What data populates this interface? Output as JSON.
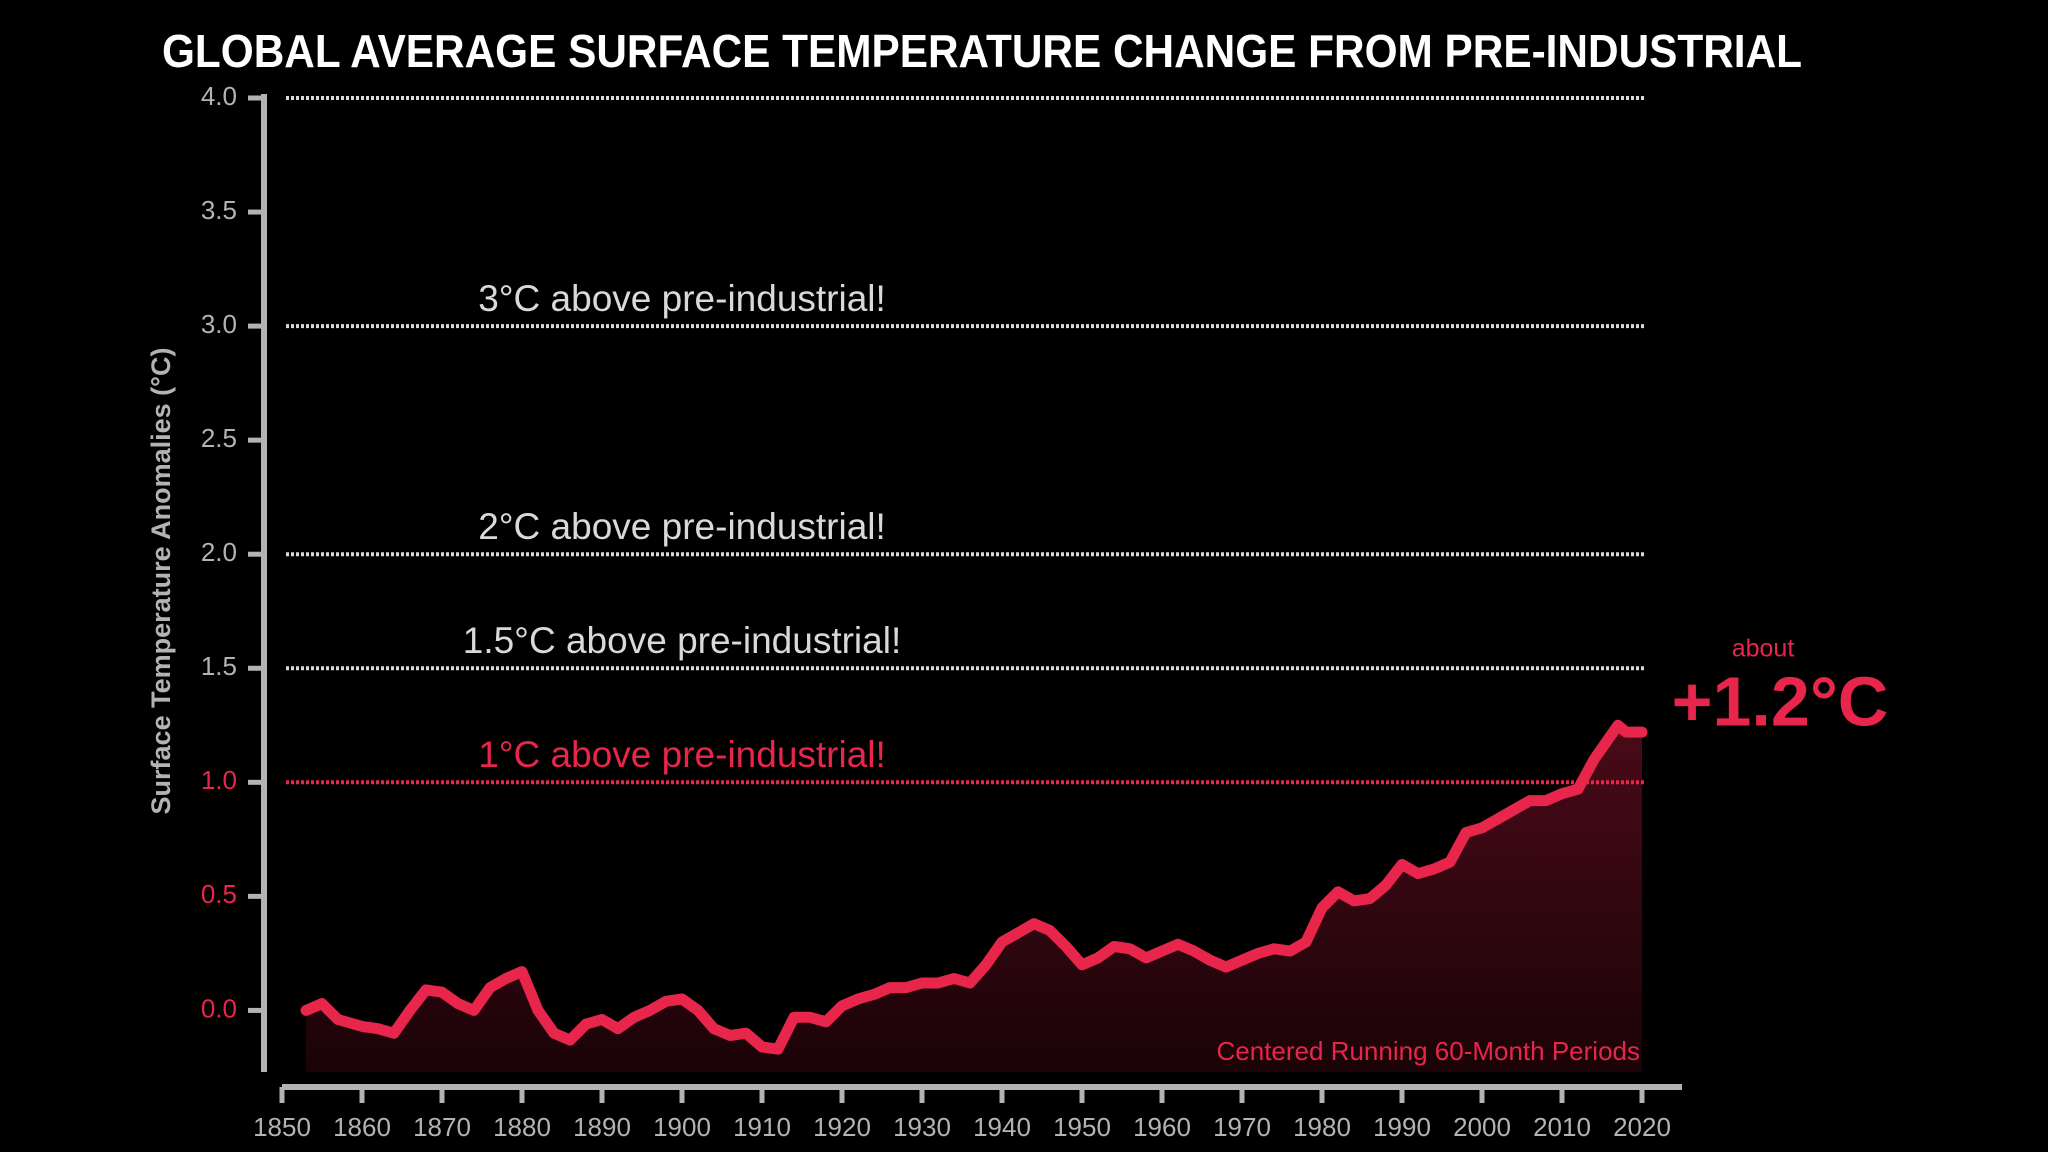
{
  "chart_data": {
    "type": "area-line",
    "title": "GLOBAL AVERAGE SURFACE TEMPERATURE CHANGE FROM PRE-INDUSTRIAL",
    "y_label": "Surface Temperature Anomalies (°C)",
    "x": [
      1853,
      1855,
      1857,
      1860,
      1862,
      1864,
      1866,
      1868,
      1870,
      1872,
      1874,
      1876,
      1878,
      1880,
      1882,
      1884,
      1886,
      1888,
      1890,
      1892,
      1894,
      1896,
      1898,
      1900,
      1902,
      1904,
      1906,
      1908,
      1910,
      1912,
      1914,
      1916,
      1918,
      1920,
      1922,
      1924,
      1926,
      1928,
      1930,
      1932,
      1934,
      1936,
      1938,
      1940,
      1942,
      1944,
      1946,
      1948,
      1950,
      1952,
      1954,
      1956,
      1958,
      1960,
      1962,
      1964,
      1966,
      1968,
      1970,
      1972,
      1974,
      1976,
      1978,
      1980,
      1982,
      1984,
      1986,
      1988,
      1990,
      1992,
      1994,
      1996,
      1998,
      2000,
      2002,
      2004,
      2006,
      2008,
      2010,
      2012,
      2014,
      2016,
      2017,
      2018,
      2020
    ],
    "series": [
      {
        "name": "Centered Running 60-Month Periods",
        "color": "#e8254a",
        "values": [
          0.0,
          0.03,
          -0.04,
          -0.07,
          -0.08,
          -0.1,
          0.0,
          0.09,
          0.08,
          0.03,
          0.0,
          0.1,
          0.14,
          0.17,
          0.0,
          -0.1,
          -0.13,
          -0.06,
          -0.04,
          -0.08,
          -0.03,
          0.0,
          0.04,
          0.05,
          0.0,
          -0.08,
          -0.11,
          -0.1,
          -0.16,
          -0.17,
          -0.03,
          -0.03,
          -0.05,
          0.02,
          0.05,
          0.07,
          0.1,
          0.1,
          0.12,
          0.12,
          0.14,
          0.12,
          0.2,
          0.3,
          0.34,
          0.38,
          0.35,
          0.28,
          0.2,
          0.23,
          0.28,
          0.27,
          0.23,
          0.26,
          0.29,
          0.26,
          0.22,
          0.19,
          0.22,
          0.25,
          0.27,
          0.26,
          0.3,
          0.45,
          0.52,
          0.48,
          0.49,
          0.55,
          0.64,
          0.6,
          0.62,
          0.65,
          0.78,
          0.8,
          0.84,
          0.88,
          0.92,
          0.92,
          0.95,
          0.97,
          1.1,
          1.2,
          1.25,
          1.22,
          1.22
        ]
      }
    ],
    "xlim": [
      1850,
      2025
    ],
    "ylim": [
      -0.27,
      4.0
    ],
    "xticks": [
      1850,
      1860,
      1870,
      1880,
      1890,
      1900,
      1910,
      1920,
      1930,
      1940,
      1950,
      1960,
      1970,
      1980,
      1990,
      2000,
      2010,
      2020
    ],
    "yticks": [
      {
        "value": 0,
        "label": "0.0"
      },
      {
        "value": 0.5,
        "label": "0.5"
      },
      {
        "value": 1,
        "label": "1.0"
      },
      {
        "value": 1.5,
        "label": "1.5"
      },
      {
        "value": 2,
        "label": "2.0"
      },
      {
        "value": 2.5,
        "label": "2.5"
      },
      {
        "value": 3,
        "label": "3.0"
      },
      {
        "value": 3.5,
        "label": "3.5"
      },
      {
        "value": 4,
        "label": "4.0"
      }
    ],
    "ytick_colors": [
      "#e8254a",
      "#e8254a",
      "#e8254a",
      "#b3b3b3",
      "#b3b3b3",
      "#b3b3b3",
      "#b3b3b3",
      "#b3b3b3",
      "#b3b3b3"
    ],
    "reference_lines": [
      {
        "value": 1,
        "label": "1°C above pre-industrial!",
        "color": "#e8254a"
      },
      {
        "value": 1.5,
        "label": "1.5°C above pre-industrial!",
        "color": "#d9d9d9"
      },
      {
        "value": 2,
        "label": "2°C above pre-industrial!",
        "color": "#d9d9d9"
      },
      {
        "value": 3,
        "label": "3°C above pre-industrial!",
        "color": "#d9d9d9"
      },
      {
        "value": 4,
        "color": "#d9d9d9"
      }
    ],
    "annotation_small": "about",
    "annotation_big": "+1.2°C"
  }
}
